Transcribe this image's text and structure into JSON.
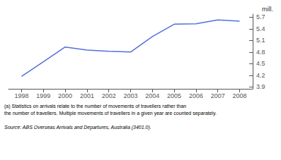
{
  "chart_data": {
    "type": "line",
    "x": [
      1998,
      1999,
      2000,
      2001,
      2002,
      2003,
      2004,
      2005,
      2006,
      2007,
      2008
    ],
    "values": [
      4.17,
      4.55,
      4.93,
      4.85,
      4.82,
      4.8,
      5.2,
      5.52,
      5.53,
      5.63,
      5.6
    ],
    "ylabel": "mill.",
    "xlim": [
      1997.4,
      2008.6
    ],
    "xticks": [
      1998,
      1999,
      2000,
      2001,
      2002,
      2003,
      2004,
      2005,
      2006,
      2007,
      2008
    ],
    "ylim": [
      3.85,
      5.78
    ],
    "yticks": [
      3.9,
      4.2,
      4.5,
      4.8,
      5.1,
      5.4,
      5.7
    ],
    "grid": false,
    "annotations": [
      "(a) Statistics on arrivals relate to the number of movements of travellers rather than",
      "the number of travellers. Multiple movements of travellers in a given year are counted separately.",
      "Source: ABS Overseas Arrivals and Departures, Australia (3401.0)."
    ]
  }
}
